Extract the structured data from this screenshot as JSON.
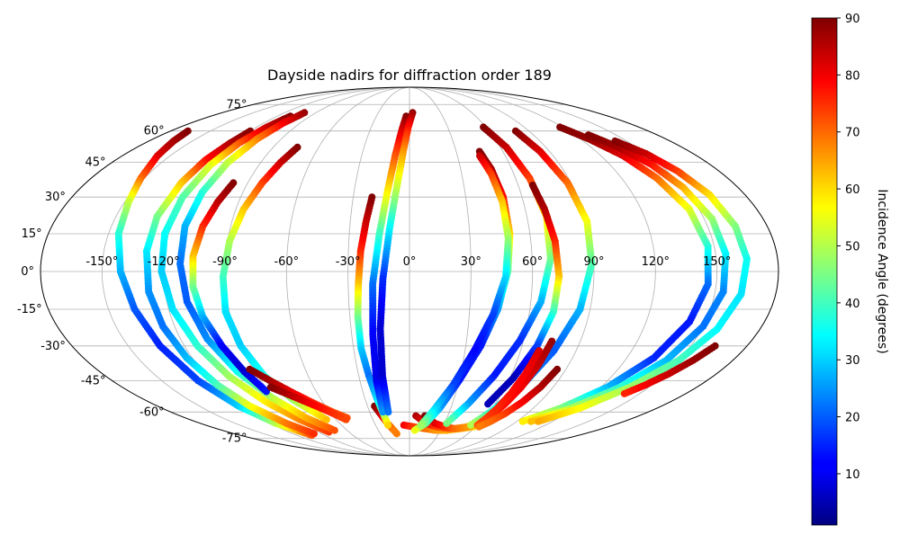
{
  "chart_data": {
    "type": "scatter",
    "projection": "mollweide",
    "title": "Dayside nadirs for diffraction order 189",
    "grid": true,
    "longitude_ticks": [
      -150,
      -120,
      -90,
      -60,
      -30,
      0,
      30,
      60,
      90,
      120,
      150
    ],
    "longitude_tick_labels": [
      "-150°",
      "-120°",
      "-90°",
      "-60°",
      "-30°",
      "0°",
      "30°",
      "60°",
      "90°",
      "120°",
      "150°"
    ],
    "latitude_ticks": [
      -75,
      -60,
      -45,
      -30,
      -15,
      0,
      15,
      30,
      45,
      60,
      75
    ],
    "latitude_tick_labels": [
      "-75°",
      "-60°",
      "-45°",
      "-30°",
      "-15°",
      "0°",
      "15°",
      "30°",
      "45°",
      "60°",
      "75°"
    ],
    "colormap": "jet",
    "colorbar": {
      "label": "Incidence Angle (degrees)",
      "range": [
        1,
        90
      ],
      "ticks": [
        10,
        20,
        30,
        40,
        50,
        60,
        70,
        80,
        90
      ],
      "tick_labels": [
        "10",
        "20",
        "30",
        "40",
        "50",
        "60",
        "70",
        "80",
        "90"
      ]
    },
    "tracks": [
      {
        "lon": [
          -167,
          -163,
          -158,
          -152,
          -148,
          -145,
          -141,
          -137,
          -133,
          -128,
          -122,
          -115,
          -104
        ],
        "lat": [
          60,
          55,
          48,
          38,
          28,
          15,
          0,
          -15,
          -30,
          -45,
          -57,
          -66,
          -73
        ],
        "inc": [
          90,
          87,
          82,
          70,
          52,
          38,
          28,
          20,
          15,
          18,
          30,
          50,
          72
        ]
      },
      {
        "lon": [
          -120,
          -122,
          -125,
          -127,
          -129,
          -129,
          -128,
          -126,
          -123,
          -119,
          -114,
          -106,
          -98
        ],
        "lat": [
          60,
          54,
          46,
          36,
          22,
          8,
          -8,
          -22,
          -35,
          -47,
          -57,
          -66,
          -72
        ],
        "inc": [
          90,
          86,
          78,
          62,
          45,
          33,
          25,
          22,
          28,
          40,
          55,
          68,
          75
        ]
      },
      {
        "lon": [
          -108,
          -112,
          -116,
          -119,
          -121,
          -122,
          -121,
          -118,
          -113,
          -107,
          -99,
          -90,
          -80
        ],
        "lat": [
          68,
          62,
          54,
          44,
          30,
          15,
          0,
          -15,
          -30,
          -43,
          -55,
          -64,
          -71
        ],
        "inc": [
          90,
          84,
          72,
          55,
          42,
          35,
          30,
          32,
          38,
          48,
          58,
          67,
          74
        ]
      },
      {
        "lon": [
          -101,
          -104,
          -107,
          -110,
          -112,
          -113,
          -112,
          -110,
          -106,
          -100,
          -92,
          -83,
          -72
        ],
        "lat": [
          70,
          64,
          56,
          45,
          32,
          18,
          3,
          -12,
          -27,
          -41,
          -53,
          -63,
          -70
        ],
        "inc": [
          88,
          80,
          68,
          52,
          38,
          28,
          22,
          20,
          24,
          35,
          50,
          63,
          72
        ]
      },
      {
        "lon": [
          -98,
          -101,
          -104,
          -106,
          -106,
          -104,
          -100,
          -96,
          -92
        ],
        "lat": [
          36,
          28,
          18,
          6,
          -6,
          -18,
          -30,
          -41,
          -50
        ],
        "inc": [
          90,
          85,
          76,
          62,
          45,
          28,
          12,
          8,
          14
        ]
      },
      {
        "lon": [
          -74,
          -78,
          -82,
          -86,
          -89,
          -91,
          -92,
          -90,
          -86,
          -79,
          -68
        ],
        "lat": [
          52,
          45,
          36,
          25,
          12,
          -2,
          -16,
          -30,
          -43,
          -54,
          -64
        ],
        "inc": [
          90,
          84,
          74,
          62,
          50,
          40,
          32,
          30,
          36,
          48,
          62
        ]
      },
      {
        "lon": [
          -92,
          -83,
          -75,
          -66,
          -58,
          -50
        ],
        "lat": [
          -40,
          -46,
          -51,
          -56,
          -60,
          -63
        ],
        "inc": [
          90,
          86,
          80,
          76,
          73,
          72
        ]
      },
      {
        "lon": [
          -87,
          -78,
          -69,
          -60,
          -52
        ],
        "lat": [
          -48,
          -52,
          -56,
          -60,
          -64
        ],
        "inc": [
          90,
          85,
          80,
          76,
          73
        ]
      },
      {
        "lon": [
          -25,
          -23,
          -21,
          -19,
          -17,
          -15,
          -13
        ],
        "lat": [
          -57,
          -60,
          -63,
          -66,
          -68,
          -70,
          -72
        ],
        "inc": [
          90,
          86,
          80,
          74,
          70,
          68,
          68
        ]
      },
      {
        "lon": [
          -20,
          -22,
          -24,
          -25,
          -26,
          -26,
          -24,
          -22,
          -20,
          -19
        ],
        "lat": [
          30,
          20,
          8,
          -5,
          -18,
          -31,
          -43,
          -53,
          -61,
          -67
        ],
        "inc": [
          90,
          84,
          76,
          62,
          45,
          30,
          22,
          30,
          45,
          60
        ]
      },
      {
        "lon": [
          -3,
          -6,
          -9,
          -12,
          -15,
          -18,
          -19,
          -20,
          -20
        ],
        "lat": [
          68,
          60,
          48,
          32,
          15,
          -5,
          -25,
          -45,
          -60
        ],
        "inc": [
          90,
          82,
          72,
          58,
          40,
          22,
          12,
          10,
          25
        ]
      },
      {
        "lon": [
          3,
          -1,
          -4,
          -7,
          -10,
          -13,
          -15,
          -16,
          -16
        ],
        "lat": [
          70,
          62,
          50,
          34,
          17,
          -3,
          -23,
          -43,
          -60
        ],
        "inc": [
          88,
          78,
          66,
          52,
          34,
          16,
          8,
          8,
          22
        ]
      },
      {
        "lon": [
          -5,
          4,
          14,
          25,
          36,
          47,
          58
        ],
        "lat": [
          -67,
          -68,
          -69,
          -70,
          -70,
          -69,
          -68
        ],
        "inc": [
          80,
          74,
          70,
          66,
          64,
          62,
          60
        ]
      },
      {
        "lon": [
          5,
          14,
          25,
          36,
          47,
          55,
          58
        ],
        "lat": [
          -62,
          -66,
          -68,
          -69,
          -69,
          -68,
          -66
        ],
        "inc": [
          86,
          80,
          74,
          70,
          66,
          64,
          62
        ]
      },
      {
        "lon": [
          12,
          22,
          32,
          42,
          52,
          58
        ],
        "lat": [
          -62,
          -66,
          -68,
          -69,
          -68,
          -66
        ],
        "inc": [
          90,
          82,
          76,
          70,
          66,
          64
        ]
      },
      {
        "lon": [
          45,
          48,
          50,
          50,
          48,
          44,
          38,
          30,
          22,
          14,
          5
        ],
        "lat": [
          50,
          42,
          30,
          15,
          0,
          -15,
          -30,
          -45,
          -58,
          -66,
          -70
        ],
        "inc": [
          90,
          86,
          78,
          60,
          42,
          26,
          14,
          14,
          26,
          42,
          55
        ]
      },
      {
        "lon": [
          44,
          47,
          49,
          49,
          47,
          42,
          35,
          27,
          18,
          10
        ],
        "lat": [
          48,
          40,
          28,
          13,
          -2,
          -17,
          -32,
          -47,
          -59,
          -67
        ],
        "inc": [
          84,
          74,
          62,
          48,
          32,
          18,
          12,
          18,
          32,
          48
        ]
      },
      {
        "lon": [
          58,
          64,
          68,
          70,
          69,
          65,
          58,
          50,
          41,
          32
        ],
        "lat": [
          62,
          52,
          38,
          22,
          5,
          -12,
          -28,
          -43,
          -56,
          -66
        ],
        "inc": [
          90,
          84,
          74,
          60,
          45,
          28,
          16,
          14,
          26,
          45
        ]
      },
      {
        "lon": [
          68,
          70,
          72,
          73,
          72,
          68,
          62,
          55
        ],
        "lat": [
          35,
          25,
          12,
          -2,
          -16,
          -30,
          -44,
          -56
        ],
        "inc": [
          90,
          86,
          76,
          62,
          40,
          18,
          6,
          6
        ]
      },
      {
        "lon": [
          80,
          84,
          88,
          90,
          89,
          85,
          78,
          70,
          62,
          54
        ],
        "lat": [
          60,
          50,
          36,
          20,
          3,
          -15,
          -32,
          -47,
          -59,
          -67
        ],
        "inc": [
          90,
          82,
          70,
          56,
          42,
          28,
          20,
          24,
          36,
          50
        ]
      },
      {
        "lon": [
          75,
          73,
          70,
          67,
          64,
          62
        ],
        "lat": [
          -28,
          -38,
          -48,
          -56,
          -62,
          -66
        ],
        "inc": [
          88,
          84,
          80,
          78,
          76,
          74
        ]
      },
      {
        "lon": [
          70,
          68,
          66,
          64,
          62,
          60
        ],
        "lat": [
          -32,
          -42,
          -51,
          -58,
          -63,
          -67
        ],
        "inc": [
          82,
          80,
          78,
          76,
          74,
          72
        ]
      },
      {
        "lon": [
          85,
          82,
          78,
          73,
          68,
          63
        ],
        "lat": [
          -40,
          -48,
          -55,
          -61,
          -65,
          -68
        ],
        "inc": [
          90,
          86,
          80,
          74,
          70,
          68
        ]
      },
      {
        "lon": [
          118,
          126,
          134,
          140,
          145,
          147,
          146,
          142,
          135,
          124,
          110,
          95
        ],
        "lat": [
          62,
          56,
          48,
          38,
          25,
          10,
          -5,
          -20,
          -35,
          -48,
          -58,
          -65
        ],
        "inc": [
          90,
          88,
          82,
          70,
          55,
          38,
          22,
          14,
          15,
          28,
          45,
          58
        ]
      },
      {
        "lon": [
          130,
          138,
          145,
          150,
          154,
          155,
          154,
          150,
          143,
          132,
          118,
          102
        ],
        "lat": [
          58,
          52,
          44,
          34,
          21,
          7,
          -8,
          -22,
          -36,
          -48,
          -58,
          -65
        ],
        "inc": [
          90,
          87,
          78,
          64,
          48,
          34,
          24,
          22,
          28,
          38,
          50,
          62
        ]
      },
      {
        "lon": [
          142,
          150,
          156,
          161,
          164,
          165,
          163,
          158,
          150,
          138,
          124,
          108
        ],
        "lat": [
          55,
          49,
          41,
          31,
          18,
          5,
          -9,
          -23,
          -36,
          -48,
          -58,
          -65
        ],
        "inc": [
          90,
          84,
          74,
          60,
          46,
          36,
          32,
          34,
          40,
          48,
          56,
          64
        ]
      },
      {
        "lon": [
          163,
          158,
          152,
          146,
          140
        ],
        "lat": [
          -30,
          -36,
          -42,
          -47,
          -51
        ],
        "inc": [
          90,
          88,
          84,
          80,
          76
        ]
      }
    ]
  }
}
